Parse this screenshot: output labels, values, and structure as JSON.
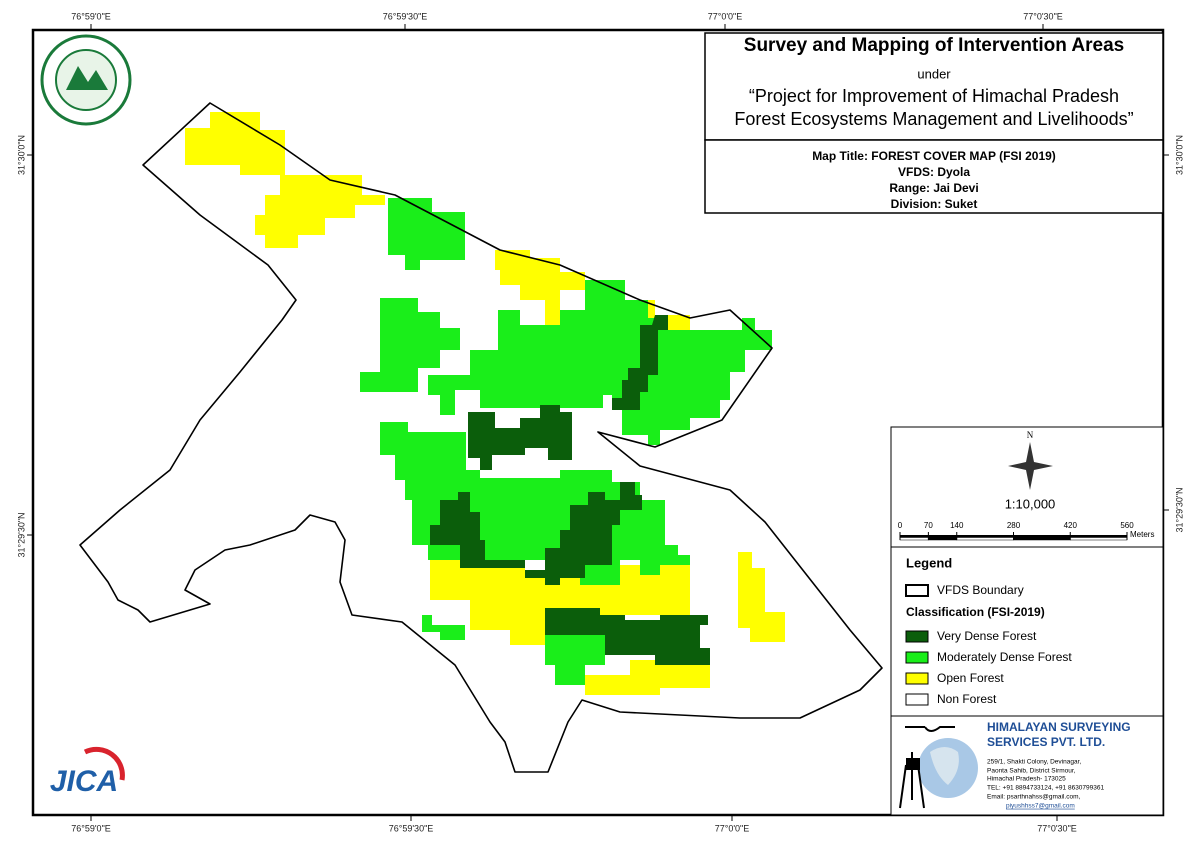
{
  "coordinates": {
    "top": [
      "76°59'0\"E",
      "76°59'30\"E",
      "77°0'0\"E",
      "77°0'30\"E"
    ],
    "bottom": [
      "76°59'0\"E",
      "76°59'30\"E",
      "77°0'0\"E",
      "77°0'30\"E"
    ],
    "left": [
      "31°30'0\"N",
      "31°29'30\"N"
    ],
    "right": [
      "31°30'0\"N",
      "31°29'30\"N"
    ]
  },
  "title_block": {
    "title": "Survey and Mapping of Intervention Areas",
    "under": "under",
    "project_line1": "“Project for Improvement of Himachal Pradesh",
    "project_line2": "Forest Ecosystems Management and Livelihoods”"
  },
  "map_info": {
    "lines": [
      "Map Title: FOREST COVER MAP (FSI 2019)",
      "VFDS: Dyola",
      "Range: Jai Devi",
      "Division: Suket"
    ]
  },
  "north": "N",
  "scale": {
    "ratio": "1:10,000",
    "ticks": [
      0,
      70,
      140,
      280,
      420,
      560
    ],
    "unit": "Meters"
  },
  "legend": {
    "title": "Legend",
    "boundary": "VFDS Boundary",
    "classification_title": "Classification (FSI-2019)",
    "items": [
      {
        "label": "Very Dense Forest",
        "color": "#0b5e0b"
      },
      {
        "label": "Moderately Dense Forest",
        "color": "#1aee1a"
      },
      {
        "label": "Open Forest",
        "color": "#ffff00"
      },
      {
        "label": "Non Forest",
        "color": "#ffffff"
      }
    ]
  },
  "company": {
    "name_line1": "HIMALAYAN SURVEYING",
    "name_line2": "SERVICES PVT. LTD.",
    "address": [
      "259/1, Shakti Colony, Devinagar,",
      "Paonta Sahib, District Sirmour,",
      "Himachal Pradesh- 173025"
    ],
    "tel": "TEL: +91 8894733124, +91 8630799361",
    "email1": "Email: psarthnahss@gmail.com,",
    "email2": "piyushhss7@gmail.com"
  },
  "logos": {
    "jica": "JICA"
  }
}
